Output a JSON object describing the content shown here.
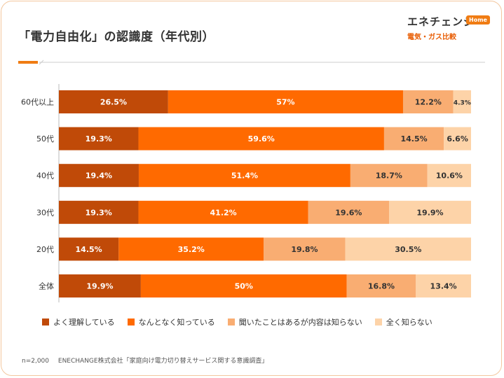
{
  "header": {
    "title": "「電力自由化」の認識度（年代別）"
  },
  "logo": {
    "main": "エネチェンジ",
    "badge": "Home",
    "sub": "電気・ガス比較"
  },
  "colors": {
    "accent": "#f07c13",
    "divider": "#cccccc",
    "series": [
      "#c04a08",
      "#ff6a00",
      "#f9ad72",
      "#fdd3a8"
    ]
  },
  "chart_data": {
    "type": "bar",
    "orientation": "horizontal",
    "stacked": true,
    "categories": [
      "60代以上",
      "50代",
      "40代",
      "30代",
      "20代",
      "全体"
    ],
    "series": [
      {
        "name": "よく理解している",
        "values": [
          26.5,
          19.3,
          19.4,
          19.3,
          14.5,
          19.9
        ],
        "labels": [
          "26.5%",
          "19.3%",
          "19.4%",
          "19.3%",
          "14.5%",
          "19.9%"
        ]
      },
      {
        "name": "なんとなく知っている",
        "values": [
          57,
          59.6,
          51.4,
          41.2,
          35.2,
          50
        ],
        "labels": [
          "57%",
          "59.6%",
          "51.4%",
          "41.2%",
          "35.2%",
          "50%"
        ]
      },
      {
        "name": "聞いたことはあるが内容は知らない",
        "values": [
          12.2,
          14.5,
          18.7,
          19.6,
          19.8,
          16.8
        ],
        "labels": [
          "12.2%",
          "14.5%",
          "18.7%",
          "19.6%",
          "19.8%",
          "16.8%"
        ]
      },
      {
        "name": "全く知らない",
        "values": [
          4.3,
          6.6,
          10.6,
          19.9,
          30.5,
          13.4
        ],
        "labels": [
          "4.3%",
          "6.6%",
          "10.6%",
          "19.9%",
          "30.5%",
          "13.4%"
        ]
      }
    ],
    "xlim": [
      0,
      100
    ]
  },
  "footnote": {
    "sample": "n=2,000",
    "source": "ENECHANGE株式会社「家庭向け電力切り替えサービス関する意識調査」"
  }
}
